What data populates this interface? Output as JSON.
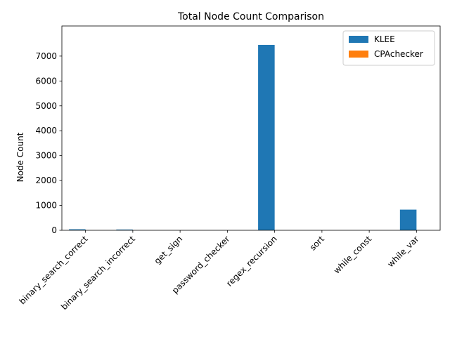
{
  "chart_data": {
    "type": "bar",
    "title": "Total Node Count Comparison",
    "xlabel": "",
    "ylabel": "Node Count",
    "categories": [
      "binary_search_correct",
      "binary_search_incorrect",
      "get_sign",
      "password_checker",
      "regex_recursion",
      "sort",
      "while_const",
      "while_var"
    ],
    "series": [
      {
        "name": "KLEE",
        "color": "#1f77b4",
        "values": [
          40,
          30,
          0,
          0,
          7450,
          0,
          0,
          830
        ]
      },
      {
        "name": "CPAchecker",
        "color": "#ff7f0e",
        "values": [
          0,
          0,
          0,
          0,
          0,
          0,
          0,
          0
        ]
      }
    ],
    "ylim": [
      0,
      8210
    ],
    "yticks": [
      0,
      1000,
      2000,
      3000,
      4000,
      5000,
      6000,
      7000
    ],
    "legend": "top-right",
    "grid": false
  }
}
